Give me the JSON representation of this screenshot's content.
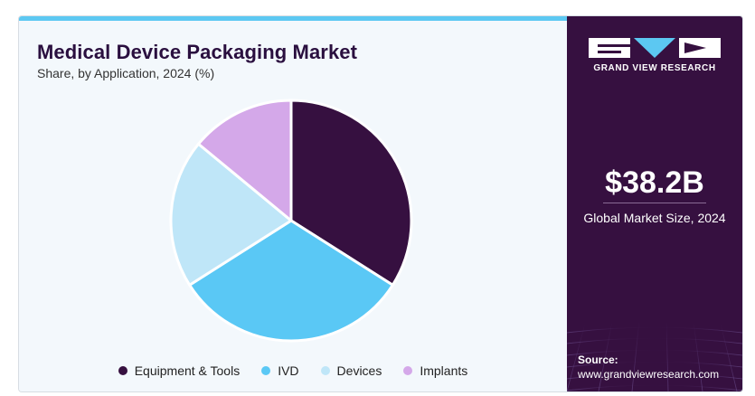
{
  "header": {
    "title": "Medical Device Packaging Market",
    "subtitle": "Share, by Application, 2024 (%)"
  },
  "chart_data": {
    "type": "pie",
    "title": "Medical Device Packaging Market",
    "subtitle": "Share, by Application, 2024 (%)",
    "legend_position": "bottom",
    "categories": [
      "Equipment & Tools",
      "IVD",
      "Devices",
      "Implants"
    ],
    "values": [
      34,
      32,
      20,
      14
    ],
    "colors": [
      "#361040",
      "#5ac8f5",
      "#bfe6f8",
      "#d4a8e9"
    ]
  },
  "sidebar": {
    "brand": "GRAND VIEW RESEARCH",
    "market_size_value": "$38.2B",
    "market_size_label": "Global Market Size, 2024",
    "source_label": "Source:",
    "source_url": "www.grandviewresearch.com"
  },
  "colors": {
    "accent": "#5cc8f2",
    "panel": "#361040",
    "background": "#f3f8fc"
  }
}
